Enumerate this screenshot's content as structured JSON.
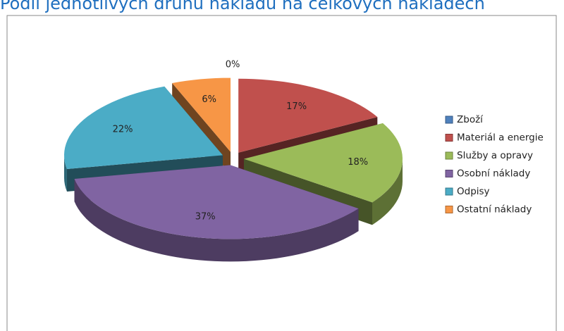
{
  "chart_data": {
    "type": "pie",
    "title": "Podíl jednotlivých druhů nákladů na celkových nákladech",
    "categories": [
      "Zboží",
      "Materiál a energie",
      "Služby a opravy",
      "Osobní náklady",
      "Odpisy",
      "Ostatní náklady"
    ],
    "values": [
      0,
      17,
      18,
      37,
      22,
      6
    ],
    "value_labels": [
      "0%",
      "17%",
      "18%",
      "37%",
      "22%",
      "6%"
    ],
    "colors": [
      "#4f81bd",
      "#c0504d",
      "#9bbb59",
      "#8064a2",
      "#4bacc6",
      "#f79646"
    ],
    "legend": "right"
  }
}
